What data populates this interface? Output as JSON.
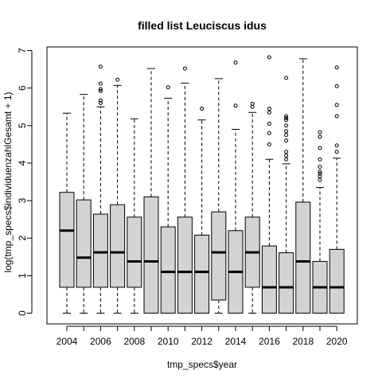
{
  "chart_data": {
    "type": "boxplot",
    "title": "filled list Leuciscus idus",
    "xlabel": "tmp_specs$year",
    "ylabel": "log(tmp_specs$individuenzahlGesamt + 1)",
    "ylim": [
      0,
      7
    ],
    "yticks": [
      "0",
      "1",
      "2",
      "3",
      "4",
      "5",
      "6",
      "7"
    ],
    "xtick_labels": [
      "2004",
      "2006",
      "2008",
      "2010",
      "2012",
      "2014",
      "2016",
      "2018",
      "2020"
    ],
    "box_fill": "#d3d3d3",
    "categories": [
      "2004",
      "2005",
      "2006",
      "2007",
      "2008",
      "2009",
      "2010",
      "2011",
      "2012",
      "2013",
      "2014",
      "2015",
      "2016",
      "2017",
      "2018",
      "2019",
      "2020"
    ],
    "boxes": [
      {
        "year": "2004",
        "low": 0,
        "q1": 0.69,
        "median": 2.2,
        "q3": 3.22,
        "high": 5.33,
        "outliers": []
      },
      {
        "year": "2005",
        "low": 0,
        "q1": 0.69,
        "median": 1.48,
        "q3": 3.02,
        "high": 5.83,
        "outliers": []
      },
      {
        "year": "2006",
        "low": 0,
        "q1": 0.69,
        "median": 1.62,
        "q3": 2.64,
        "high": 5.5,
        "outliers": [
          5.6,
          5.67,
          5.92,
          5.97,
          6.12,
          6.57
        ]
      },
      {
        "year": "2007",
        "low": 0,
        "q1": 0.69,
        "median": 1.62,
        "q3": 2.89,
        "high": 6.07,
        "outliers": [
          6.22
        ]
      },
      {
        "year": "2008",
        "low": 0,
        "q1": 0.69,
        "median": 1.38,
        "q3": 2.56,
        "high": 5.18,
        "outliers": []
      },
      {
        "year": "2009",
        "low": 0,
        "q1": 0,
        "median": 1.38,
        "q3": 3.1,
        "high": 6.52,
        "outliers": []
      },
      {
        "year": "2010",
        "low": 0,
        "q1": 0,
        "median": 1.1,
        "q3": 2.3,
        "high": 5.73,
        "outliers": [
          6.02
        ]
      },
      {
        "year": "2011",
        "low": 0,
        "q1": 0,
        "median": 1.1,
        "q3": 2.56,
        "high": 6.13,
        "outliers": [
          6.52
        ]
      },
      {
        "year": "2012",
        "low": 0,
        "q1": 0,
        "median": 1.1,
        "q3": 2.08,
        "high": 5.15,
        "outliers": [
          5.45
        ]
      },
      {
        "year": "2013",
        "low": 0,
        "q1": 0.35,
        "median": 1.62,
        "q3": 2.7,
        "high": 6.25,
        "outliers": []
      },
      {
        "year": "2014",
        "low": 0,
        "q1": 0,
        "median": 1.1,
        "q3": 2.2,
        "high": 4.9,
        "outliers": [
          5.53,
          6.68
        ]
      },
      {
        "year": "2015",
        "low": 0,
        "q1": 0.69,
        "median": 1.62,
        "q3": 2.56,
        "high": 5.35,
        "outliers": [
          5.5,
          5.58
        ]
      },
      {
        "year": "2016",
        "low": 0,
        "q1": 0,
        "median": 0.69,
        "q3": 1.79,
        "high": 4.1,
        "outliers": [
          4.5,
          4.8,
          5.05,
          5.35,
          5.45,
          6.82
        ]
      },
      {
        "year": "2017",
        "low": 0,
        "q1": 0,
        "median": 0.69,
        "q3": 1.61,
        "high": 3.98,
        "outliers": [
          4.1,
          4.2,
          4.3,
          4.6,
          4.75,
          4.85,
          5.0,
          5.15,
          5.2,
          5.25,
          6.27
        ]
      },
      {
        "year": "2018",
        "low": 0,
        "q1": 0,
        "median": 1.38,
        "q3": 2.96,
        "high": 6.78,
        "outliers": []
      },
      {
        "year": "2019",
        "low": 0,
        "q1": 0,
        "median": 0.69,
        "q3": 1.38,
        "high": 3.35,
        "outliers": [
          3.55,
          3.65,
          3.72,
          3.77,
          3.9,
          4.1,
          4.4,
          4.7,
          4.82
        ]
      },
      {
        "year": "2020",
        "low": 0,
        "q1": 0,
        "median": 0.69,
        "q3": 1.7,
        "high": 4.13,
        "outliers": [
          4.3,
          4.47,
          5.25,
          5.55,
          6.05,
          6.55
        ]
      }
    ]
  }
}
